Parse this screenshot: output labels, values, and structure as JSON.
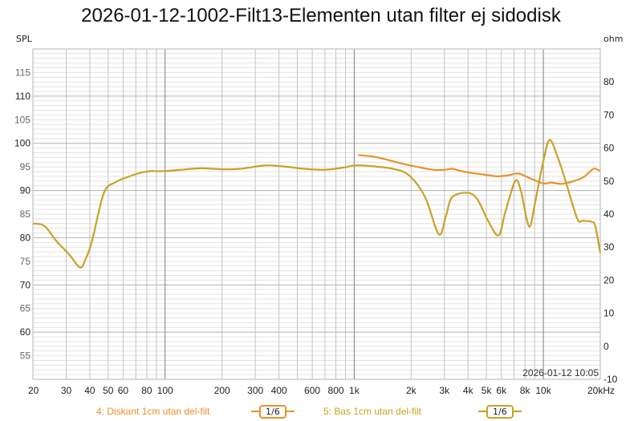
{
  "title": "2026-01-12-1002-Filt13-Elementen utan filter ej sidodisk",
  "left_axis_label": "SPL",
  "right_axis_label": "ohm",
  "timestamp": "2026-01-12 10:05",
  "legend": [
    {
      "label": "4: Diskant 1cm utan del-filt",
      "color": "#E8922A",
      "smoothing": "1/6"
    },
    {
      "label": "5: Bas 1cm utan del-filt",
      "color": "#C9A227",
      "smoothing": "1/6"
    }
  ],
  "chart_data": {
    "type": "line",
    "title": "2026-01-12-1002-Filt13-Elementen utan filter ej sidodisk",
    "xlabel": "Hz",
    "ylabel": "SPL",
    "y2label": "ohm",
    "xscale": "log",
    "xlim": [
      20,
      20000
    ],
    "ylim": [
      50,
      120
    ],
    "y2lim": [
      -10,
      90
    ],
    "grid": true,
    "legend_position": "bottom",
    "x_tick_labels": [
      "20",
      "30",
      "40",
      "50",
      "60",
      "80",
      "100",
      "200",
      "300",
      "400",
      "600",
      "800",
      "1k",
      "2k",
      "3k",
      "4k",
      "5k",
      "6k",
      "8k",
      "10k",
      "20kHz"
    ],
    "y_tick_labels": [
      "55",
      "60",
      "65",
      "70",
      "75",
      "80",
      "85",
      "90",
      "95",
      "100",
      "105",
      "110",
      "115"
    ],
    "y2_tick_labels": [
      "-10",
      "0",
      "10",
      "20",
      "30",
      "40",
      "50",
      "60",
      "70",
      "80"
    ],
    "series": [
      {
        "name": "4: Diskant 1cm utan del-filt",
        "color": "#E8922A",
        "x": [
          1050,
          1300,
          1750,
          2100,
          2600,
          3000,
          3300,
          3700,
          4200,
          5000,
          5700,
          6500,
          7400,
          8500,
          10000,
          11000,
          12500,
          14500,
          16400,
          18400,
          20000
        ],
        "y": [
          97.5,
          97.1,
          95.8,
          95.1,
          94.4,
          94.4,
          94.6,
          94.1,
          93.7,
          93.3,
          93.0,
          93.2,
          93.6,
          92.6,
          91.5,
          91.7,
          91.4,
          92.0,
          92.9,
          94.6,
          94.1
        ]
      },
      {
        "name": "5: Bas 1cm utan del-filt",
        "color": "#C9A227",
        "x": [
          20,
          23,
          26.6,
          31,
          35.5,
          38,
          41.1,
          47.5,
          55,
          63.9,
          75,
          85.7,
          100,
          153,
          200,
          250,
          335,
          400,
          545,
          700,
          890,
          1000,
          1200,
          1600,
          1950,
          2370,
          2800,
          3050,
          3300,
          4000,
          4500,
          5100,
          5800,
          6300,
          7100,
          7600,
          8400,
          9000,
          10000,
          10800,
          11800,
          13000,
          15100,
          16200,
          17900,
          18800,
          20000
        ],
        "y": [
          83.0,
          82.5,
          79.3,
          76.5,
          73.7,
          75.5,
          79.3,
          89.5,
          91.8,
          92.9,
          93.8,
          94.1,
          94.1,
          94.7,
          94.5,
          94.6,
          95.3,
          95.2,
          94.6,
          94.4,
          94.9,
          95.3,
          95.2,
          94.6,
          93.2,
          88.6,
          80.7,
          84.5,
          88.6,
          89.5,
          88.0,
          83.6,
          80.5,
          85.5,
          92.0,
          90.0,
          82.4,
          87.0,
          96.3,
          100.7,
          97.5,
          92.5,
          84.1,
          83.6,
          83.4,
          82.5,
          76.8
        ]
      }
    ]
  }
}
